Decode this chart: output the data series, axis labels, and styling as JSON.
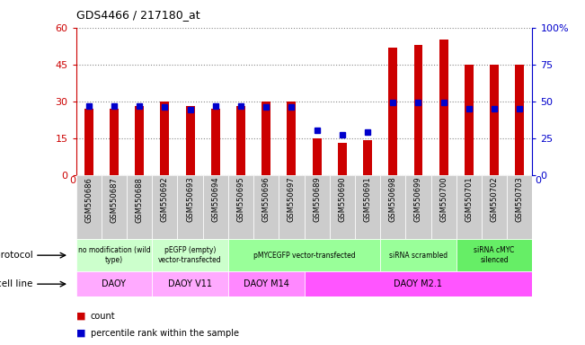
{
  "title": "GDS4466 / 217180_at",
  "samples": [
    "GSM550686",
    "GSM550687",
    "GSM550688",
    "GSM550692",
    "GSM550693",
    "GSM550694",
    "GSM550695",
    "GSM550696",
    "GSM550697",
    "GSM550689",
    "GSM550690",
    "GSM550691",
    "GSM550698",
    "GSM550699",
    "GSM550700",
    "GSM550701",
    "GSM550702",
    "GSM550703"
  ],
  "counts": [
    27,
    27,
    28,
    30,
    28,
    27,
    28,
    30,
    30,
    15,
    13,
    14,
    52,
    53,
    55,
    45,
    45,
    45
  ],
  "percentiles": [
    47,
    47,
    47,
    46,
    44,
    47,
    47,
    46,
    46,
    30,
    27,
    29,
    49,
    49,
    49,
    45,
    45,
    45
  ],
  "count_color": "#cc0000",
  "percentile_color": "#0000cc",
  "ylim_left": [
    0,
    60
  ],
  "ylim_right": [
    0,
    100
  ],
  "yticks_left": [
    0,
    15,
    30,
    45,
    60
  ],
  "yticks_right": [
    0,
    25,
    50,
    75,
    100
  ],
  "ytick_labels_right": [
    "0",
    "25",
    "50",
    "75",
    "100%"
  ],
  "bar_width": 0.35,
  "protocol_data": [
    [
      0,
      3,
      "no modification (wild\ntype)",
      "#ccffcc"
    ],
    [
      3,
      6,
      "pEGFP (empty)\nvector-transfected",
      "#ccffcc"
    ],
    [
      6,
      12,
      "pMYCEGFP vector-transfected",
      "#99ff99"
    ],
    [
      12,
      15,
      "siRNA scrambled",
      "#99ff99"
    ],
    [
      15,
      18,
      "siRNA cMYC\nsilenced",
      "#66ee66"
    ]
  ],
  "cell_data": [
    [
      0,
      3,
      "DAOY",
      "#ffaaff"
    ],
    [
      3,
      6,
      "DAOY V11",
      "#ffaaff"
    ],
    [
      6,
      9,
      "DAOY M14",
      "#ff88ff"
    ],
    [
      9,
      18,
      "DAOY M2.1",
      "#ff55ff"
    ]
  ],
  "legend_count": "count",
  "legend_percentile": "percentile rank within the sample",
  "bg_color": "#ffffff",
  "tick_bg_color": "#dddddd",
  "grid_color": "#888888"
}
